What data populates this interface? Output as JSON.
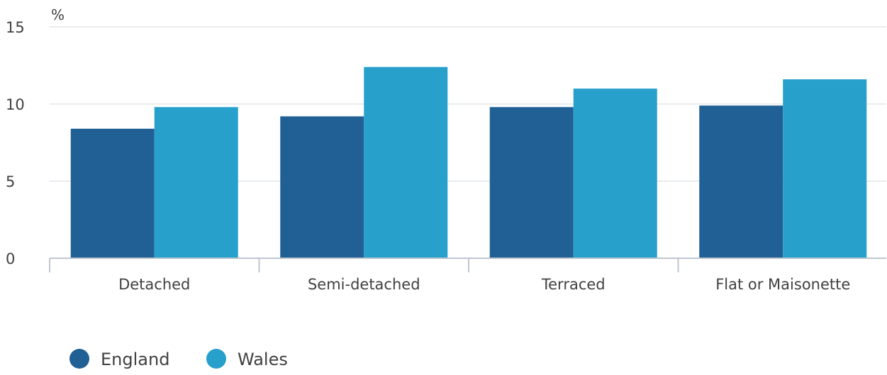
{
  "chart_data": {
    "type": "bar",
    "title": "",
    "xlabel": "",
    "ylabel": "%",
    "ylim": [
      0,
      15
    ],
    "yticks": [
      0,
      5,
      10,
      15
    ],
    "grid": true,
    "legend_position": "bottom-left",
    "categories": [
      "Detached",
      "Semi-detached",
      "Terraced",
      "Flat or Maisonette"
    ],
    "series": [
      {
        "name": "England",
        "color": "#206095",
        "values": [
          8.4,
          9.2,
          9.8,
          9.9
        ]
      },
      {
        "name": "Wales",
        "color": "#27A0CC",
        "values": [
          9.8,
          12.4,
          11.0,
          11.6
        ]
      }
    ]
  }
}
